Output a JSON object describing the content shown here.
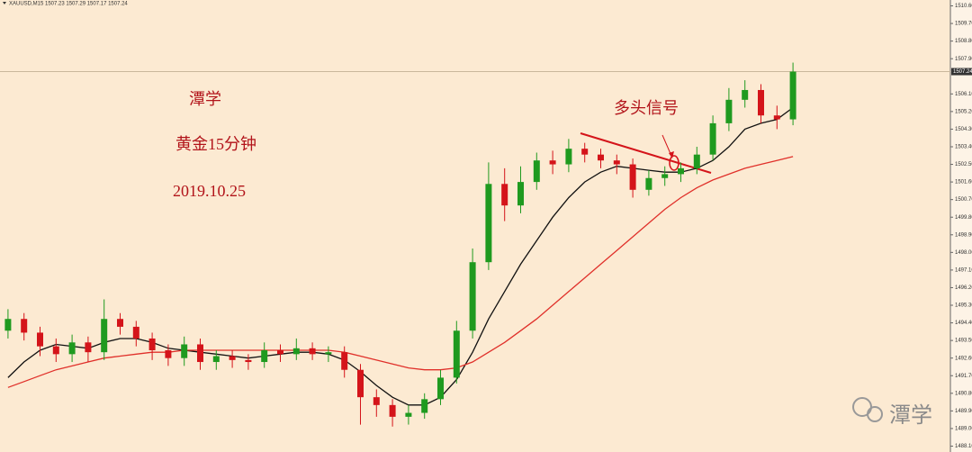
{
  "chart_data": {
    "type": "candlestick",
    "info": "XAUUSD,M15 1507.23 1507.29 1507.17 1507.24",
    "annotations": [
      "潭学",
      "黄金15分钟",
      "2019.10.25",
      "多头信号"
    ],
    "watermark": "潭学",
    "up_color": "#1f9a1f",
    "down_color": "#d4141a",
    "ylim": [
      1487.8,
      1510.9
    ],
    "yticks": [
      {
        "value": 1510.6,
        "label": "1510.60"
      },
      {
        "value": 1509.7,
        "label": "1509.70"
      },
      {
        "value": 1508.8,
        "label": "1508.80"
      },
      {
        "value": 1507.9,
        "label": "1507.90"
      },
      {
        "value": 1506.1,
        "label": "1506.10"
      },
      {
        "value": 1505.2,
        "label": "1505.20"
      },
      {
        "value": 1504.3,
        "label": "1504.30"
      },
      {
        "value": 1503.4,
        "label": "1503.40"
      },
      {
        "value": 1502.5,
        "label": "1502.50"
      },
      {
        "value": 1501.6,
        "label": "1501.60"
      },
      {
        "value": 1500.7,
        "label": "1500.70"
      },
      {
        "value": 1499.8,
        "label": "1499.80"
      },
      {
        "value": 1498.9,
        "label": "1498.90"
      },
      {
        "value": 1498.0,
        "label": "1498.00"
      },
      {
        "value": 1497.1,
        "label": "1497.10"
      },
      {
        "value": 1496.2,
        "label": "1496.20"
      },
      {
        "value": 1495.3,
        "label": "1495.30"
      },
      {
        "value": 1494.4,
        "label": "1494.40"
      },
      {
        "value": 1493.5,
        "label": "1493.50"
      },
      {
        "value": 1492.6,
        "label": "1492.60"
      },
      {
        "value": 1491.7,
        "label": "1491.70"
      },
      {
        "value": 1490.8,
        "label": "1490.80"
      },
      {
        "value": 1489.9,
        "label": "1489.90"
      },
      {
        "value": 1489.0,
        "label": "1489.00"
      },
      {
        "value": 1488.1,
        "label": "1488.10"
      }
    ],
    "last_price": 1507.24,
    "open": [
      1494.0,
      1494.6,
      1493.9,
      1493.2,
      1492.8,
      1493.4,
      1492.9,
      1494.6,
      1494.2,
      1493.6,
      1493.0,
      1492.6,
      1493.3,
      1492.4,
      1492.7,
      1492.5,
      1492.4,
      1493.0,
      1492.8,
      1493.1,
      1492.8,
      1492.9,
      1492.0,
      1490.6,
      1490.2,
      1489.6,
      1489.8,
      1490.5,
      1491.6,
      1494.0,
      1497.5,
      1501.5,
      1500.4,
      1501.6,
      1502.7,
      1502.5,
      1503.3,
      1503.0,
      1502.7,
      1502.5,
      1501.2,
      1501.8,
      1502.0,
      1502.3,
      1503.0,
      1504.6,
      1505.8,
      1506.3,
      1505.0,
      1504.8
    ],
    "high": [
      1495.1,
      1494.9,
      1494.2,
      1493.6,
      1493.8,
      1493.7,
      1495.6,
      1494.9,
      1494.5,
      1493.9,
      1493.3,
      1493.7,
      1493.6,
      1493.0,
      1493.0,
      1492.8,
      1493.4,
      1493.3,
      1493.6,
      1493.4,
      1493.2,
      1493.2,
      1492.3,
      1491.0,
      1490.5,
      1490.2,
      1490.8,
      1492.0,
      1494.5,
      1498.2,
      1502.6,
      1502.3,
      1502.4,
      1503.1,
      1503.2,
      1503.8,
      1503.6,
      1503.3,
      1503.0,
      1502.8,
      1502.2,
      1502.4,
      1502.6,
      1503.4,
      1505.0,
      1506.4,
      1506.8,
      1506.6,
      1505.5,
      1507.7
    ],
    "low": [
      1493.6,
      1493.5,
      1492.7,
      1492.4,
      1492.4,
      1492.4,
      1492.5,
      1493.8,
      1493.2,
      1492.5,
      1492.2,
      1492.2,
      1492.0,
      1492.0,
      1492.1,
      1492.0,
      1492.1,
      1492.4,
      1492.5,
      1492.5,
      1492.4,
      1491.6,
      1489.2,
      1489.6,
      1489.1,
      1489.2,
      1489.5,
      1490.2,
      1491.3,
      1493.6,
      1497.1,
      1499.6,
      1500.0,
      1501.2,
      1502.0,
      1502.1,
      1502.6,
      1502.3,
      1502.0,
      1500.8,
      1500.9,
      1501.4,
      1501.6,
      1502.0,
      1502.7,
      1504.2,
      1505.4,
      1504.6,
      1504.3,
      1504.5
    ],
    "close": [
      1494.6,
      1493.9,
      1493.2,
      1492.8,
      1493.4,
      1492.9,
      1494.6,
      1494.2,
      1493.6,
      1493.0,
      1492.6,
      1493.3,
      1492.4,
      1492.7,
      1492.5,
      1492.4,
      1493.0,
      1492.8,
      1493.1,
      1492.8,
      1492.9,
      1492.0,
      1490.6,
      1490.2,
      1489.6,
      1489.8,
      1490.5,
      1491.6,
      1494.0,
      1497.5,
      1501.5,
      1500.4,
      1501.6,
      1502.7,
      1502.5,
      1503.3,
      1503.0,
      1502.7,
      1502.5,
      1501.2,
      1501.8,
      1502.0,
      1502.3,
      1503.0,
      1504.6,
      1505.8,
      1506.3,
      1505.0,
      1504.8,
      1507.24
    ],
    "ma": [
      {
        "color": "#111111",
        "values": [
          1491.6,
          1492.4,
          1493.0,
          1493.3,
          1493.2,
          1493.1,
          1493.4,
          1493.6,
          1493.6,
          1493.4,
          1493.1,
          1493.0,
          1492.9,
          1492.8,
          1492.7,
          1492.6,
          1492.7,
          1492.8,
          1492.9,
          1492.9,
          1492.8,
          1492.5,
          1491.9,
          1491.2,
          1490.6,
          1490.2,
          1490.2,
          1490.6,
          1491.5,
          1492.9,
          1494.6,
          1496.0,
          1497.4,
          1498.6,
          1499.8,
          1500.8,
          1501.6,
          1502.1,
          1502.4,
          1502.3,
          1502.2,
          1502.1,
          1502.1,
          1502.3,
          1502.7,
          1503.4,
          1504.3,
          1504.6,
          1504.8,
          1505.4
        ]
      },
      {
        "color": "#e0302a",
        "values": [
          1491.1,
          1491.4,
          1491.7,
          1492.0,
          1492.2,
          1492.4,
          1492.6,
          1492.7,
          1492.8,
          1492.9,
          1492.9,
          1493.0,
          1493.0,
          1493.0,
          1493.0,
          1493.0,
          1493.0,
          1493.0,
          1493.0,
          1493.0,
          1493.0,
          1492.9,
          1492.7,
          1492.5,
          1492.3,
          1492.1,
          1492.0,
          1492.0,
          1492.1,
          1492.4,
          1492.9,
          1493.4,
          1494.0,
          1494.6,
          1495.3,
          1496.0,
          1496.7,
          1497.4,
          1498.1,
          1498.8,
          1499.5,
          1500.2,
          1500.8,
          1501.3,
          1501.7,
          1502.0,
          1502.3,
          1502.5,
          1502.7,
          1502.9
        ]
      }
    ]
  }
}
